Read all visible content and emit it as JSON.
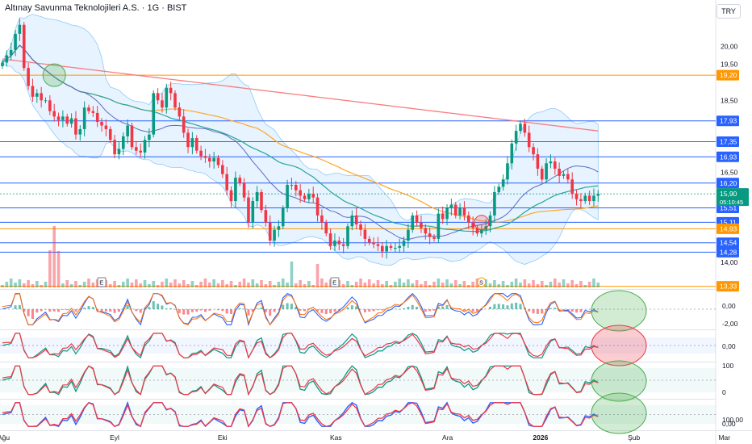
{
  "header": {
    "title": "Altınay Savunma Teknolojileri A.S. · 1G · BIST",
    "currency": "TRY"
  },
  "colors": {
    "up": "#089981",
    "down": "#f23645",
    "hline_blue": "#2962ff",
    "hline_orange": "#ff9800",
    "ma_red": "#f77c80",
    "ma_orange": "#ffa726",
    "ma_green": "#26a69a",
    "bb_fill": "#bbdefb"
  },
  "chart_data": [
    {
      "type": "candlestick",
      "title": "Altınay Savunma Teknolojileri A.S. · 1G · BIST",
      "ylim": [
        13.3,
        21.2
      ],
      "y_ticks": [
        "20,00",
        "19,50",
        "19,00",
        "18,50",
        "18,00",
        "17,50",
        "17,00",
        "16,50",
        "16,00",
        "15,50",
        "15,00",
        "14,50",
        "14,00"
      ],
      "x_ticks": [
        "Ağu",
        "Eyl",
        "Eki",
        "Kas",
        "Ara",
        "2026",
        "Şub",
        "Mar"
      ],
      "x_tick_pos": [
        0,
        26,
        51,
        77,
        103,
        124,
        146,
        167
      ],
      "closes": [
        19.55,
        19.75,
        19.9,
        20.35,
        20.6,
        19.4,
        18.9,
        18.6,
        18.7,
        18.5,
        18.5,
        18.2,
        18.05,
        17.95,
        18.05,
        17.85,
        18.0,
        17.55,
        17.7,
        18.3,
        18.2,
        18.15,
        17.9,
        17.8,
        17.7,
        17.4,
        17.0,
        17.15,
        17.5,
        17.8,
        17.2,
        17.1,
        17.05,
        17.4,
        17.55,
        18.7,
        18.5,
        18.3,
        18.85,
        18.7,
        18.3,
        18.05,
        17.6,
        17.2,
        17.45,
        17.1,
        16.95,
        16.9,
        16.8,
        16.9,
        16.7,
        16.45,
        16.0,
        15.7,
        16.35,
        16.2,
        15.8,
        15.1,
        15.7,
        15.95,
        15.45,
        15.1,
        14.6,
        14.9,
        15.0,
        15.5,
        16.15,
        16.15,
        16.0,
        15.85,
        15.75,
        15.9,
        15.8,
        15.3,
        15.1,
        14.8,
        14.45,
        14.6,
        14.5,
        14.45,
        15.0,
        15.3,
        15.05,
        14.9,
        14.65,
        14.55,
        14.5,
        14.45,
        14.3,
        14.45,
        14.4,
        14.4,
        14.45,
        14.6,
        14.9,
        15.3,
        15.1,
        14.95,
        14.8,
        14.7,
        14.65,
        15.35,
        15.2,
        15.5,
        15.6,
        15.3,
        15.5,
        15.3,
        15.1,
        14.95,
        14.8,
        14.9,
        15.0,
        15.3,
        15.95,
        16.1,
        16.3,
        16.75,
        17.3,
        17.65,
        17.85,
        17.6,
        17.2,
        17.0,
        16.6,
        16.3,
        16.75,
        16.8,
        16.6,
        16.4,
        16.45,
        16.3,
        15.9,
        15.75,
        15.7,
        15.85,
        15.7,
        15.85,
        15.9
      ],
      "volume_markers": [
        "E",
        "E",
        "S"
      ],
      "price_lines": [
        {
          "label": "19,20",
          "value": 19.2,
          "color": "#ff9800"
        },
        {
          "label": "17,93",
          "value": 17.93,
          "color": "#2962ff"
        },
        {
          "label": "17,35",
          "value": 17.35,
          "color": "#2962ff"
        },
        {
          "label": "16,93",
          "value": 16.93,
          "color": "#2962ff"
        },
        {
          "label": "16,20",
          "value": 16.2,
          "color": "#2962ff"
        },
        {
          "label": "15,51",
          "value": 15.51,
          "color": "#2962ff"
        },
        {
          "label": "15,11",
          "value": 15.11,
          "color": "#2962ff"
        },
        {
          "label": "14,93",
          "value": 14.93,
          "color": "#ff9800"
        },
        {
          "label": "14,54",
          "value": 14.54,
          "color": "#2962ff"
        },
        {
          "label": "14,28",
          "value": 14.28,
          "color": "#2962ff"
        },
        {
          "label": "13,33",
          "value": 13.33,
          "color": "#ff9800"
        }
      ],
      "last_price": {
        "label": "15,90",
        "countdown": "05:10:45",
        "value": 15.9
      }
    },
    {
      "type": "line",
      "panel": "macd",
      "y_ticks": [
        "0,00",
        "-2,00"
      ]
    },
    {
      "type": "line",
      "panel": "oscillator",
      "y_ticks": [
        "0,00"
      ]
    },
    {
      "type": "line",
      "panel": "stochastic",
      "y_ticks": [
        "100",
        "0"
      ]
    },
    {
      "type": "line",
      "panel": "stochastic-rsi",
      "y_ticks": [
        "100,00",
        "0,00"
      ]
    }
  ]
}
